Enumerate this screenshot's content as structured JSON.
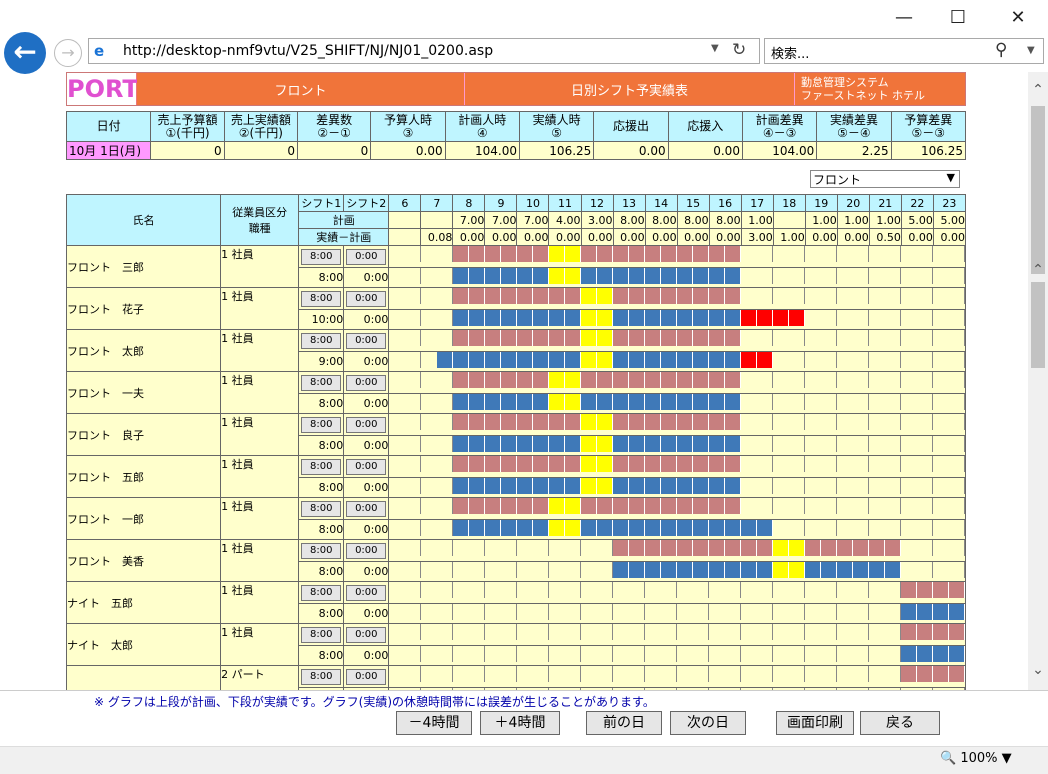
{
  "window": {
    "minimize": "—",
    "maximize": "☐",
    "close": "✕"
  },
  "browser": {
    "url": "http://desktop-nmf9vtu/V25_SHIFT/NJ/NJ01_0200.asp",
    "search_placeholder": "検索...",
    "zoom": "100%"
  },
  "header": {
    "logo": "PORT",
    "dept": "フロント",
    "title": "日別シフト予実績表",
    "system_line1": "勤怠管理システム",
    "system_line2": "ファーストネット ホテル"
  },
  "summary": {
    "headers": [
      [
        "日付",
        ""
      ],
      [
        "売上予算額",
        "①(千円)"
      ],
      [
        "売上実績額",
        "②(千円)"
      ],
      [
        "差異数",
        "②－①"
      ],
      [
        "予算人時",
        "③"
      ],
      [
        "計画人時",
        "④"
      ],
      [
        "実績人時",
        "⑤"
      ],
      [
        "応援出",
        ""
      ],
      [
        "応援入",
        ""
      ],
      [
        "計画差異",
        "④－③"
      ],
      [
        "実績差異",
        "⑤－④"
      ],
      [
        "予算差異",
        "⑤－③"
      ]
    ],
    "values": [
      "10月 1日(月)",
      "0",
      "0",
      "0",
      "0.00",
      "104.00",
      "106.25",
      "0.00",
      "0.00",
      "104.00",
      "2.25",
      "106.25"
    ]
  },
  "dept_select": "フロント",
  "grid": {
    "h_name": "氏名",
    "h_class": "従業員区分",
    "h_job": "職種",
    "h_shift1": "シフト1",
    "h_shift2": "シフト2",
    "h_plan": "計画",
    "h_diff": "実績－計画",
    "hours": [
      "6",
      "7",
      "8",
      "9",
      "10",
      "11",
      "12",
      "13",
      "14",
      "15",
      "16",
      "17",
      "18",
      "19",
      "20",
      "21",
      "22",
      "23"
    ],
    "plan": [
      "",
      "",
      "7.00",
      "7.00",
      "7.00",
      "4.00",
      "3.00",
      "8.00",
      "8.00",
      "8.00",
      "8.00",
      "1.00",
      "",
      "1.00",
      "1.00",
      "1.00",
      "5.00",
      "5.00"
    ],
    "diff": [
      "",
      "0.08",
      "0.00",
      "0.00",
      "0.00",
      "0.00",
      "0.00",
      "0.00",
      "0.00",
      "0.00",
      "0.00",
      "3.00",
      "1.00",
      "0.00",
      "0.00",
      "0.50",
      "0.00",
      "0.00"
    ]
  },
  "employees": [
    {
      "name": "フロント　三郎",
      "cls": "1 社員",
      "b1": "8:00",
      "b2": "0:00",
      "t1": "",
      "t2": "8:00",
      "t1b": "0:00",
      "t2b": "0:00"
    },
    {
      "name": "フロント　花子",
      "cls": "1 社員",
      "b1": "8:00",
      "b2": "0:00",
      "t1": "",
      "t2": "10:00",
      "t1b": "0:00",
      "t2b": "0:00"
    },
    {
      "name": "フロント　太郎",
      "cls": "1 社員",
      "b1": "8:00",
      "b2": "0:00",
      "t1": "",
      "t2": "9:00",
      "t1b": "0:00",
      "t2b": "0:00"
    },
    {
      "name": "フロント　一夫",
      "cls": "1 社員",
      "b1": "8:00",
      "b2": "0:00",
      "t1": "",
      "t2": "8:00",
      "t1b": "0:00",
      "t2b": "0:00"
    },
    {
      "name": "フロント　良子",
      "cls": "1 社員",
      "b1": "8:00",
      "b2": "0:00",
      "t1": "",
      "t2": "8:00",
      "t1b": "0:00",
      "t2b": "0:00"
    },
    {
      "name": "フロント　五郎",
      "cls": "1 社員",
      "b1": "8:00",
      "b2": "0:00",
      "t1": "",
      "t2": "8:00",
      "t1b": "0:00",
      "t2b": "0:00"
    },
    {
      "name": "フロント　一郎",
      "cls": "1 社員",
      "b1": "8:00",
      "b2": "0:00",
      "t1": "",
      "t2": "8:00",
      "t1b": "0:00",
      "t2b": "0:00"
    },
    {
      "name": "フロント　美香",
      "cls": "1 社員",
      "b1": "8:00",
      "b2": "0:00",
      "t1": "",
      "t2": "8:00",
      "t1b": "0:00",
      "t2b": "0:00"
    },
    {
      "name": "ナイト　五郎",
      "cls": "1 社員",
      "b1": "8:00",
      "b2": "0:00",
      "t1": "",
      "t2": "8:00",
      "t1b": "0:00",
      "t2b": "0:00"
    },
    {
      "name": "ナイト　太郎",
      "cls": "1 社員",
      "b1": "8:00",
      "b2": "0:00",
      "t1": "",
      "t2": "8:00",
      "t1b": "0:00",
      "t2b": "0:00"
    },
    {
      "name": "",
      "cls": "2 パート",
      "b1": "8:00",
      "b2": "0:00",
      "t1": "",
      "t2": "",
      "t1b": "",
      "t2b": ""
    }
  ],
  "footer": {
    "note": "※ グラフは上段が計画、下段が実績です。グラフ(実績)の休憩時間帯には誤差が生じることがあります。",
    "minus": "－4時間",
    "plus": "＋4時間",
    "prev": "前の日",
    "next": "次の日",
    "print": "画面印刷",
    "back": "戻る"
  }
}
